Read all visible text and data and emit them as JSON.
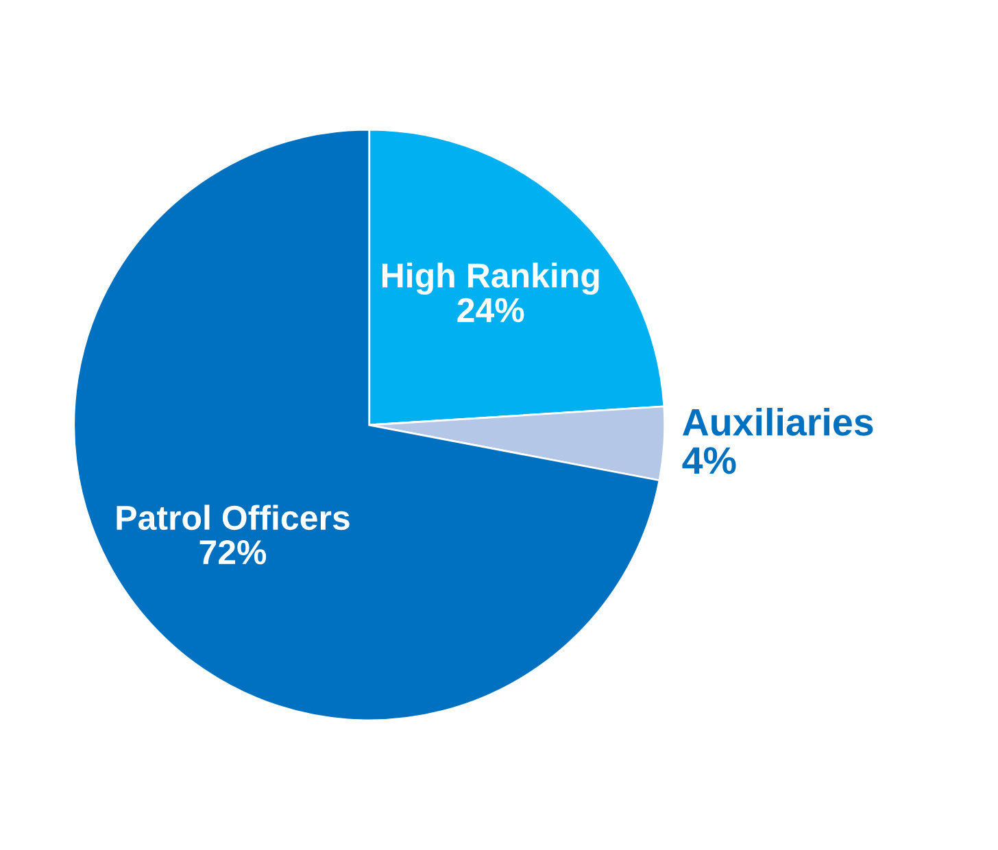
{
  "chart_data": {
    "type": "pie",
    "categories": [
      "High Ranking",
      "Auxiliaries",
      "Patrol Officers"
    ],
    "values": [
      24,
      4,
      72
    ],
    "value_labels": [
      "24%",
      "4%",
      "72%"
    ],
    "colors": [
      "#00b0f0",
      "#b4c7e7",
      "#0070c0"
    ],
    "legend": false
  }
}
